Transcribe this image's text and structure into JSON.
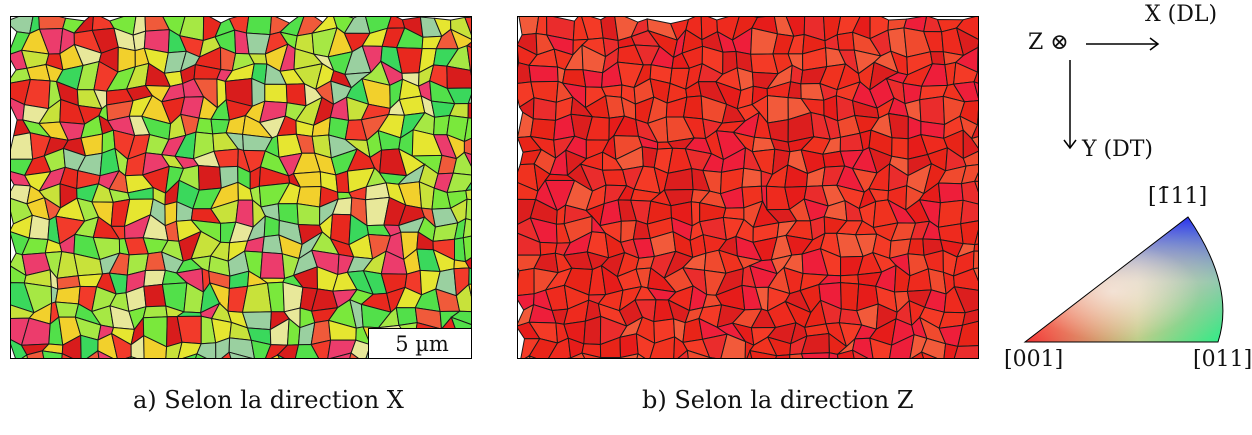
{
  "figure": {
    "panel_a": {
      "caption": "a) Selon la direction X",
      "scale_bar": "5 µm",
      "palette": [
        "#e8281e",
        "#f23a2a",
        "#d81c1c",
        "#52e04a",
        "#7ae83c",
        "#3ad85c",
        "#c8e23a",
        "#e6e630",
        "#f2d02c",
        "#a6e844",
        "#f05a3a",
        "#9ad0a0",
        "#e8e89a",
        "#ec3c6c"
      ]
    },
    "panel_b": {
      "caption": "b) Selon la direction Z",
      "palette": [
        "#ee2a1e",
        "#f0321f",
        "#e82418",
        "#f43a26",
        "#e61c1a",
        "#f04a2e",
        "#dc1e1e",
        "#f25a3a",
        "#ea2c2c",
        "#ee1e3a"
      ]
    },
    "axes": {
      "z_label": "Z ⊗",
      "x_label": "X (DL)",
      "y_label": "Y (DT)"
    },
    "ipf_key": {
      "top_label": "[1̄11]",
      "left_label": "[001]",
      "right_label": "[011]",
      "colors": {
        "001": "#ff0000",
        "011": "#00ff00",
        "111": "#0000ff"
      }
    }
  }
}
